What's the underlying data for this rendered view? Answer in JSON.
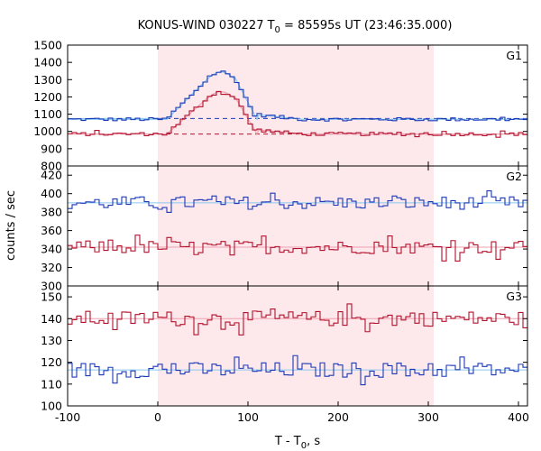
{
  "chart_data": {
    "type": "line",
    "title_main": "KONUS-WIND 030227 T",
    "title_sub": "0",
    "title_rest": " = 85595s UT (23:46:35.000)",
    "xlabel_main": "T - T",
    "xlabel_sub": "0",
    "xlabel_rest": ", s",
    "ylabel": "counts / sec",
    "xlim": [
      -100,
      410
    ],
    "xticks": [
      "-100",
      "0",
      "100",
      "200",
      "300",
      "400"
    ],
    "highlight_interval": [
      0,
      306
    ],
    "colors": {
      "highlight": "#fde8eb",
      "red": "#b3122e",
      "blue": "#1c3ab8",
      "red_fit": "#f0a0b0",
      "blue_fit": "#88c8f0",
      "blue_dash": "#1c3ab8",
      "red_dash": "#b3122e"
    },
    "panels": [
      {
        "label": "G1",
        "ylim": [
          800,
          1500
        ],
        "yticks": [
          "800",
          "900",
          "1000",
          "1100",
          "1200",
          "1300",
          "1400",
          "1500"
        ],
        "series": [
          {
            "color": "blue",
            "kind": "burst",
            "base": 1070,
            "peak": 1345,
            "noise": 10,
            "bg": 1075
          },
          {
            "color": "red",
            "kind": "burst",
            "base": 985,
            "peak": 1230,
            "noise": 10,
            "bg": 985
          }
        ]
      },
      {
        "label": "G2",
        "ylim": [
          300,
          430
        ],
        "yticks": [
          "300",
          "320",
          "340",
          "360",
          "380",
          "400",
          "420"
        ],
        "series": [
          {
            "color": "blue",
            "kind": "flat",
            "base": 390,
            "noise": 7
          },
          {
            "color": "red",
            "kind": "flat",
            "base": 342,
            "noise": 7
          }
        ]
      },
      {
        "label": "G3",
        "ylim": [
          100,
          155
        ],
        "yticks": [
          "100",
          "110",
          "120",
          "130",
          "140",
          "150"
        ],
        "series": [
          {
            "color": "red",
            "kind": "flat",
            "base": 140,
            "noise": 3.5
          },
          {
            "color": "blue",
            "kind": "flat",
            "base": 116.5,
            "noise": 3.5
          }
        ]
      }
    ]
  }
}
